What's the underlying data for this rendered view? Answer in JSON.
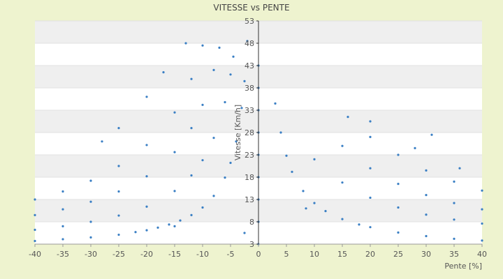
{
  "chart_data": {
    "type": "scatter",
    "title": "VITESSE vs PENTE",
    "xlabel": "Pente [%]",
    "ylabel": "Vitesse [Km/h]",
    "xlim": [
      -40,
      40
    ],
    "ylim": [
      3,
      53
    ],
    "x_ticks": [
      -40,
      -35,
      -30,
      -25,
      -20,
      -15,
      -10,
      -5,
      0,
      5,
      10,
      15,
      20,
      25,
      30,
      35,
      40
    ],
    "y_ticks": [
      3,
      8,
      13,
      18,
      23,
      28,
      33,
      38,
      43,
      48,
      53
    ],
    "grid": "horizontal alternating bands",
    "legend": "none",
    "point_color": "#3a7fc4",
    "series": [
      {
        "points": [
          [
            -40,
            3.7
          ],
          [
            -35,
            4.1
          ],
          [
            -30,
            4.5
          ],
          [
            -25,
            5.1
          ],
          [
            -22,
            5.7
          ],
          [
            -20,
            6.1
          ],
          [
            -18,
            6.7
          ],
          [
            -16,
            7.4
          ],
          [
            -14,
            8.3
          ],
          [
            -12,
            9.5
          ],
          [
            -10,
            11.2
          ],
          [
            -8,
            13.8
          ],
          [
            -6,
            17.9
          ],
          [
            -5,
            21.2
          ],
          [
            -4,
            26.0
          ],
          [
            -3,
            33.5
          ],
          [
            -2.5,
            39.5
          ],
          [
            -2,
            48.5
          ],
          [
            3,
            34.5
          ],
          [
            4,
            28.0
          ],
          [
            5,
            22.8
          ],
          [
            6,
            19.2
          ],
          [
            8,
            14.9
          ],
          [
            10,
            12.2
          ],
          [
            12,
            10.4
          ],
          [
            15,
            8.6
          ],
          [
            18,
            7.4
          ],
          [
            20,
            6.8
          ],
          [
            25,
            5.6
          ],
          [
            30,
            4.8
          ],
          [
            35,
            4.2
          ],
          [
            40,
            3.8
          ]
        ]
      },
      {
        "points": [
          [
            -40,
            6.2
          ],
          [
            -35,
            7.0
          ],
          [
            -30,
            8.0
          ],
          [
            -25,
            9.4
          ],
          [
            -20,
            11.4
          ],
          [
            -15,
            14.9
          ],
          [
            -12,
            18.4
          ],
          [
            -10,
            21.8
          ],
          [
            -8,
            26.8
          ],
          [
            -6,
            34.8
          ],
          [
            -5,
            41.0
          ],
          [
            -4.5,
            45.0
          ],
          [
            10,
            22.0
          ],
          [
            15,
            16.8
          ],
          [
            20,
            13.4
          ],
          [
            25,
            11.2
          ],
          [
            30,
            9.6
          ],
          [
            35,
            8.5
          ],
          [
            40,
            7.6
          ]
        ]
      },
      {
        "points": [
          [
            -40,
            9.5
          ],
          [
            -35,
            10.8
          ],
          [
            -30,
            12.5
          ],
          [
            -25,
            14.8
          ],
          [
            -20,
            18.2
          ],
          [
            -15,
            23.6
          ],
          [
            -12,
            29.0
          ],
          [
            -10,
            34.2
          ],
          [
            -8,
            42.0
          ],
          [
            -7,
            47.0
          ],
          [
            15,
            25.0
          ],
          [
            20,
            20.0
          ],
          [
            25,
            16.5
          ],
          [
            30,
            14.0
          ],
          [
            35,
            12.2
          ],
          [
            40,
            10.8
          ]
        ]
      },
      {
        "points": [
          [
            -40,
            13.0
          ],
          [
            -35,
            14.8
          ],
          [
            -30,
            17.2
          ],
          [
            -25,
            20.5
          ],
          [
            -20,
            25.2
          ],
          [
            -15,
            32.5
          ],
          [
            -12,
            40.0
          ],
          [
            -10,
            47.5
          ],
          [
            20,
            27.0
          ],
          [
            25,
            23.0
          ],
          [
            30,
            19.5
          ],
          [
            35,
            17.0
          ],
          [
            40,
            15.0
          ]
        ]
      },
      {
        "points": [
          [
            -28,
            26.0
          ],
          [
            -25,
            29.0
          ],
          [
            -20,
            36.0
          ],
          [
            -17,
            41.5
          ],
          [
            -13,
            48.0
          ],
          [
            16,
            31.5
          ],
          [
            20,
            30.5
          ],
          [
            28,
            24.5
          ],
          [
            31,
            27.5
          ],
          [
            36,
            20.0
          ]
        ]
      },
      {
        "points": [
          [
            0,
            3
          ],
          [
            0,
            8
          ],
          [
            0,
            13
          ],
          [
            0,
            18
          ],
          [
            0,
            23
          ],
          [
            0,
            28
          ],
          [
            0,
            33
          ],
          [
            0,
            38
          ],
          [
            0,
            43
          ],
          [
            -15,
            7.0
          ],
          [
            8.5,
            11.0
          ],
          [
            -2.5,
            5.5
          ]
        ]
      }
    ]
  }
}
